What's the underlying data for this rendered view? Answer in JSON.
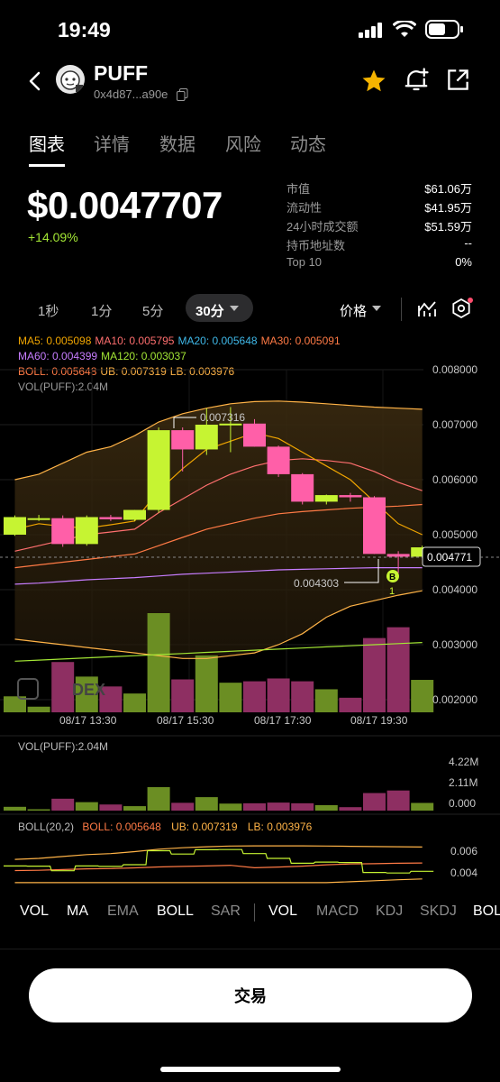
{
  "status_bar": {
    "time": "19:49"
  },
  "header": {
    "token_name": "PUFF",
    "token_address": "0x4d87...a90e",
    "icons": [
      "back-arrow-icon",
      "copy-icon",
      "star-icon",
      "bell-plus-icon",
      "share-icon"
    ],
    "accent_star": "#f5b400"
  },
  "tabs": [
    {
      "label": "图表",
      "active": true
    },
    {
      "label": "详情"
    },
    {
      "label": "数据"
    },
    {
      "label": "风险"
    },
    {
      "label": "动态"
    }
  ],
  "price": {
    "value": "$0.0047707",
    "change": "+14.09%"
  },
  "stats": [
    {
      "label": "市值",
      "value": "$61.06万"
    },
    {
      "label": "流动性",
      "value": "$41.95万"
    },
    {
      "label": "24小时成交额",
      "value": "$51.59万"
    },
    {
      "label": "持币地址数",
      "value": "--"
    },
    {
      "label": "Top 10",
      "value": "0%"
    }
  ],
  "intervals": [
    {
      "label": "1秒"
    },
    {
      "label": "1分"
    },
    {
      "label": "5分"
    },
    {
      "label": "30分",
      "active": true
    }
  ],
  "price_selector": "价格",
  "legend": {
    "ma5": "MA5: 0.005098",
    "ma10": "MA10: 0.005795",
    "ma20": "MA20: 0.005648",
    "ma30": "MA30: 0.005091",
    "ma60": "MA60: 0.004399",
    "ma120": "MA120: 0.003037",
    "boll": "BOLL: 0.005648",
    "ub": "UB: 0.007319",
    "lb": "LB: 0.003976",
    "vol": "VOL(PUFF):2.04M"
  },
  "main_chart": {
    "y_ticks": [
      "0.008000",
      "0.007000",
      "0.006000",
      "0.005000",
      "0.004000",
      "0.003000",
      "0.002000"
    ],
    "x_ticks": [
      "08/17 13:30",
      "08/17 15:30",
      "08/17 17:30",
      "08/17 19:30"
    ],
    "high_label": "0.007316",
    "low_label": "0.004303",
    "current_price_tag": "0.004771",
    "buy_marker": "B",
    "buy_count": "1",
    "watermark": "DEX",
    "candles": [
      {
        "o": 0.005,
        "h": 0.00535,
        "l": 0.00498,
        "c": 0.00532,
        "v": 0.34
      },
      {
        "o": 0.0053,
        "h": 0.00536,
        "l": 0.00525,
        "c": 0.0053,
        "v": 0.12
      },
      {
        "o": 0.0053,
        "h": 0.00535,
        "l": 0.00478,
        "c": 0.00483,
        "v": 1.07
      },
      {
        "o": 0.00483,
        "h": 0.00535,
        "l": 0.0048,
        "c": 0.00532,
        "v": 0.76
      },
      {
        "o": 0.00532,
        "h": 0.00536,
        "l": 0.00525,
        "c": 0.00528,
        "v": 0.55
      },
      {
        "o": 0.00527,
        "h": 0.00545,
        "l": 0.00525,
        "c": 0.00545,
        "v": 0.4
      },
      {
        "o": 0.00545,
        "h": 0.00695,
        "l": 0.0054,
        "c": 0.0069,
        "v": 2.11
      },
      {
        "o": 0.0069,
        "h": 0.00695,
        "l": 0.00615,
        "c": 0.00655,
        "v": 0.7
      },
      {
        "o": 0.00655,
        "h": 0.0073,
        "l": 0.00645,
        "c": 0.007,
        "v": 1.21
      },
      {
        "o": 0.007,
        "h": 0.00732,
        "l": 0.0065,
        "c": 0.00702,
        "v": 0.63
      },
      {
        "o": 0.00702,
        "h": 0.0071,
        "l": 0.0066,
        "c": 0.0066,
        "v": 0.66
      },
      {
        "o": 0.0066,
        "h": 0.00662,
        "l": 0.00605,
        "c": 0.0061,
        "v": 0.72
      },
      {
        "o": 0.0061,
        "h": 0.00612,
        "l": 0.00555,
        "c": 0.0056,
        "v": 0.66
      },
      {
        "o": 0.0056,
        "h": 0.00573,
        "l": 0.00555,
        "c": 0.00572,
        "v": 0.49
      },
      {
        "o": 0.00572,
        "h": 0.00576,
        "l": 0.0056,
        "c": 0.00568,
        "v": 0.31
      },
      {
        "o": 0.00568,
        "h": 0.0057,
        "l": 0.00465,
        "c": 0.00465,
        "v": 1.58
      },
      {
        "o": 0.00465,
        "h": 0.0047,
        "l": 0.0043,
        "c": 0.0046,
        "v": 1.81
      },
      {
        "o": 0.0046,
        "h": 0.0048,
        "l": 0.00458,
        "c": 0.00477,
        "v": 0.69
      }
    ]
  },
  "vol_panel": {
    "title": "VOL(PUFF):2.04M",
    "y_ticks": [
      "4.22M",
      "2.11M",
      "0.000"
    ]
  },
  "boll_panel": {
    "title": "BOLL(20,2)",
    "boll": "BOLL: 0.005648",
    "ub": "UB: 0.007319",
    "lb": "LB: 0.003976",
    "y_ticks": [
      "0.006",
      "0.004"
    ]
  },
  "indicators_main": [
    {
      "label": "VOL"
    },
    {
      "label": "MA"
    },
    {
      "label": "EMA",
      "dim": true
    },
    {
      "label": "BOLL"
    },
    {
      "label": "SAR",
      "dim": true
    }
  ],
  "indicators_sub": [
    {
      "label": "VOL"
    },
    {
      "label": "MACD",
      "dim": true
    },
    {
      "label": "KDJ",
      "dim": true
    },
    {
      "label": "SKDJ",
      "dim": true
    },
    {
      "label": "BOL"
    }
  ],
  "trade_button": "交易",
  "colors": {
    "up": "#c6f432",
    "down": "#ff5fa8",
    "vol_up": "#6b8e23",
    "vol_down": "#8e2f62",
    "ma5": "#f0a500",
    "ma10": "#ff6f6f",
    "ma20": "#3fb8e8",
    "ma30": "#ff7a45",
    "ma60": "#c77dff",
    "ma120": "#a3e635",
    "boll": "#ff7a45",
    "ub": "#ffb347",
    "lb": "#ffb347"
  }
}
